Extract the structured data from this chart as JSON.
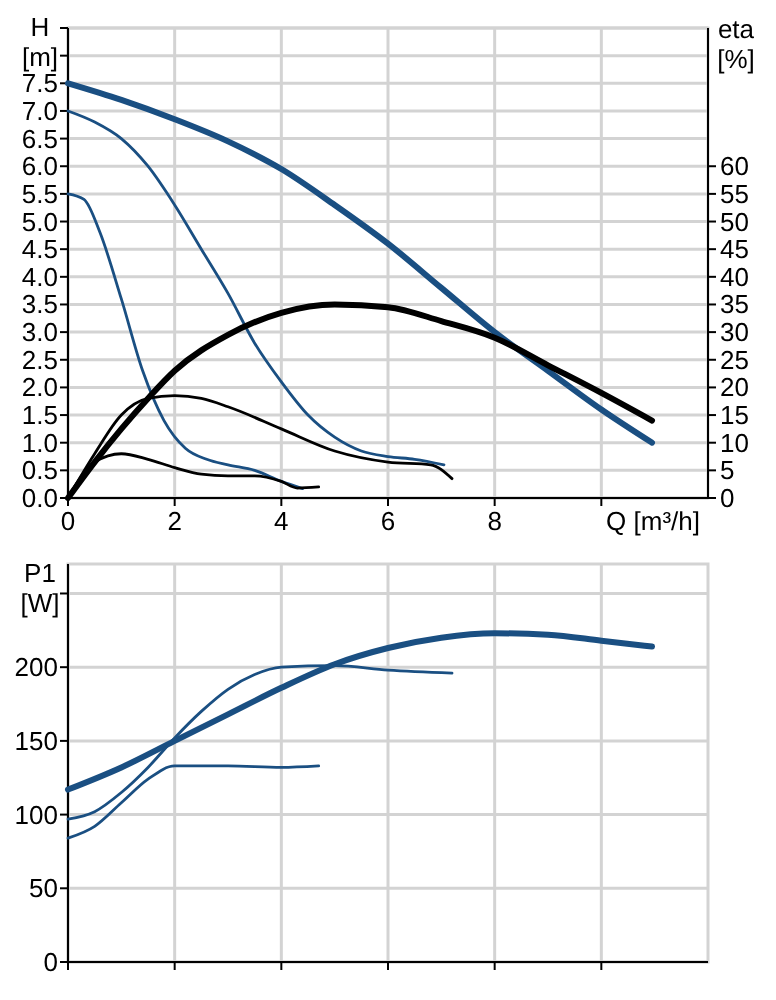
{
  "chart_data": [
    {
      "type": "line",
      "ylabel": "H [m]",
      "y2label": "eta [%]",
      "xlabel": "Q [m³/h]",
      "grid": true,
      "marker": "none",
      "line_style": "solid",
      "xlim": [
        0,
        12
      ],
      "xticks": [
        0,
        2,
        4,
        6,
        8,
        {
          "value": 10,
          "label": null
        }
      ],
      "ylim": [
        0,
        8.5
      ],
      "yticks": [
        {
          "value": 0,
          "label": "0.0"
        },
        0.5,
        {
          "value": 1,
          "label": "1.0"
        },
        1.5,
        {
          "value": 2,
          "label": "2.0"
        },
        2.5,
        {
          "value": 3,
          "label": "3.0"
        },
        3.5,
        {
          "value": 4,
          "label": "4.0"
        },
        4.5,
        {
          "value": 5,
          "label": "5.0"
        },
        5.5,
        {
          "value": 6,
          "label": "6.0"
        },
        6.5,
        {
          "value": 7,
          "label": "7.0"
        },
        7.5,
        {
          "value": 8,
          "label": null
        },
        {
          "value": 8.5,
          "label": null
        }
      ],
      "y2lim": [
        0,
        85
      ],
      "y2ticks": [
        0,
        5,
        10,
        15,
        20,
        25,
        30,
        35,
        40,
        45,
        50,
        55,
        60
      ],
      "series": [
        {
          "color": "#1a4f82",
          "x": [
            0,
            1,
            2,
            3,
            4,
            5,
            6,
            7,
            8,
            9,
            10,
            10.95
          ],
          "values": [
            7.5,
            7.2,
            6.85,
            6.45,
            5.95,
            5.3,
            4.6,
            3.8,
            3.0,
            2.3,
            1.6,
            1.0
          ]
        },
        {
          "color": "#1a4f82",
          "x": [
            0,
            0.5,
            1,
            1.5,
            2,
            2.5,
            3,
            3.5,
            4,
            4.5,
            5,
            5.5,
            6,
            6.5,
            7.05
          ],
          "values": [
            7.0,
            6.8,
            6.5,
            6.0,
            5.3,
            4.5,
            3.7,
            2.8,
            2.1,
            1.5,
            1.1,
            0.85,
            0.75,
            0.7,
            0.6
          ]
        },
        {
          "color": "#1a4f82",
          "x": [
            0,
            0.3,
            0.6,
            1,
            1.4,
            1.8,
            2.2,
            2.6,
            3,
            3.5,
            4,
            4.4
          ],
          "values": [
            5.5,
            5.4,
            4.8,
            3.6,
            2.3,
            1.4,
            0.9,
            0.7,
            0.6,
            0.5,
            0.3,
            0.17
          ]
        },
        {
          "color": "#000000",
          "axis": "y2",
          "x": [
            0,
            0.5,
            1,
            1.5,
            2,
            3,
            4,
            5,
            6,
            7,
            8,
            9,
            10,
            10.95
          ],
          "values": [
            0,
            6.5,
            12.5,
            18,
            23,
            29.5,
            33.5,
            35,
            34.5,
            32,
            29,
            24,
            19,
            14
          ]
        },
        {
          "color": "#000000",
          "axis": "y2",
          "x": [
            0,
            0.5,
            1,
            1.5,
            2,
            2.5,
            3,
            4,
            5,
            6,
            6.8,
            7.2
          ],
          "values": [
            0,
            8,
            15,
            18,
            18.5,
            18,
            16.5,
            12.5,
            8.5,
            6.5,
            6,
            3.5
          ]
        },
        {
          "color": "#000000",
          "axis": "y2",
          "x": [
            0,
            0.5,
            1,
            1.5,
            2,
            2.5,
            3,
            3.5,
            4,
            4.3,
            4.7
          ],
          "values": [
            0,
            6.5,
            8,
            7,
            5.5,
            4.3,
            4,
            4,
            3,
            1.8,
            2
          ]
        }
      ]
    },
    {
      "type": "line",
      "ylabel": "P1 [W]",
      "grid": true,
      "marker": "none",
      "line_style": "solid",
      "tick_labels": "y",
      "xlim": [
        0,
        12
      ],
      "xticks": [
        0,
        2,
        4,
        6,
        8,
        10
      ],
      "ylim": [
        0,
        270
      ],
      "yticks": [
        0,
        50,
        100,
        150,
        200,
        {
          "value": 250,
          "label": null
        }
      ],
      "series": [
        {
          "color": "#1a4f82",
          "x": [
            0,
            1,
            2,
            3,
            4,
            5,
            6,
            7,
            8,
            9,
            10,
            10.95
          ],
          "values": [
            117,
            132,
            150,
            168,
            186,
            202,
            213,
            220,
            223,
            222,
            218,
            214
          ]
        },
        {
          "color": "#1a4f82",
          "x": [
            0,
            0.5,
            1,
            1.5,
            2,
            2.5,
            3,
            3.5,
            4,
            5,
            6,
            7.2
          ],
          "values": [
            97,
            102,
            115,
            132,
            152,
            170,
            185,
            195,
            200,
            201,
            198,
            196
          ]
        },
        {
          "color": "#1a4f82",
          "x": [
            0,
            0.5,
            1,
            1.5,
            2,
            3,
            4,
            4.7
          ],
          "values": [
            84,
            92,
            108,
            124,
            133,
            133,
            132,
            133
          ]
        }
      ]
    }
  ]
}
